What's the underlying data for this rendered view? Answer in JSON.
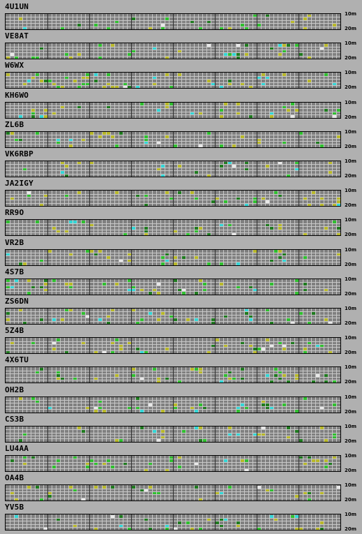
{
  "band_labels": {
    "top": "10m",
    "bottom": "20m"
  },
  "colors": {
    "grid_bg": "#808080",
    "grid_line": "#c8c8c8",
    "hour_line": "#303030",
    "signal_green": "#2fbf2f",
    "signal_dark_green": "#1f7a1f",
    "signal_yellow": "#b8b82a",
    "signal_cyan": "#33d6d6",
    "signal_white": "#e8e8e8"
  },
  "stations": [
    {
      "callsign": "4U1UN"
    },
    {
      "callsign": "VE8AT"
    },
    {
      "callsign": "W6WX"
    },
    {
      "callsign": "KH6WO"
    },
    {
      "callsign": "ZL6B"
    },
    {
      "callsign": "VK6RBP"
    },
    {
      "callsign": "JA2IGY"
    },
    {
      "callsign": "RR9O"
    },
    {
      "callsign": "VR2B"
    },
    {
      "callsign": "4S7B"
    },
    {
      "callsign": "ZS6DN"
    },
    {
      "callsign": "5Z4B"
    },
    {
      "callsign": "4X6TU"
    },
    {
      "callsign": "OH2B"
    },
    {
      "callsign": "CS3B"
    },
    {
      "callsign": "LU4AA"
    },
    {
      "callsign": "OA4B"
    },
    {
      "callsign": "YV5B"
    }
  ]
}
